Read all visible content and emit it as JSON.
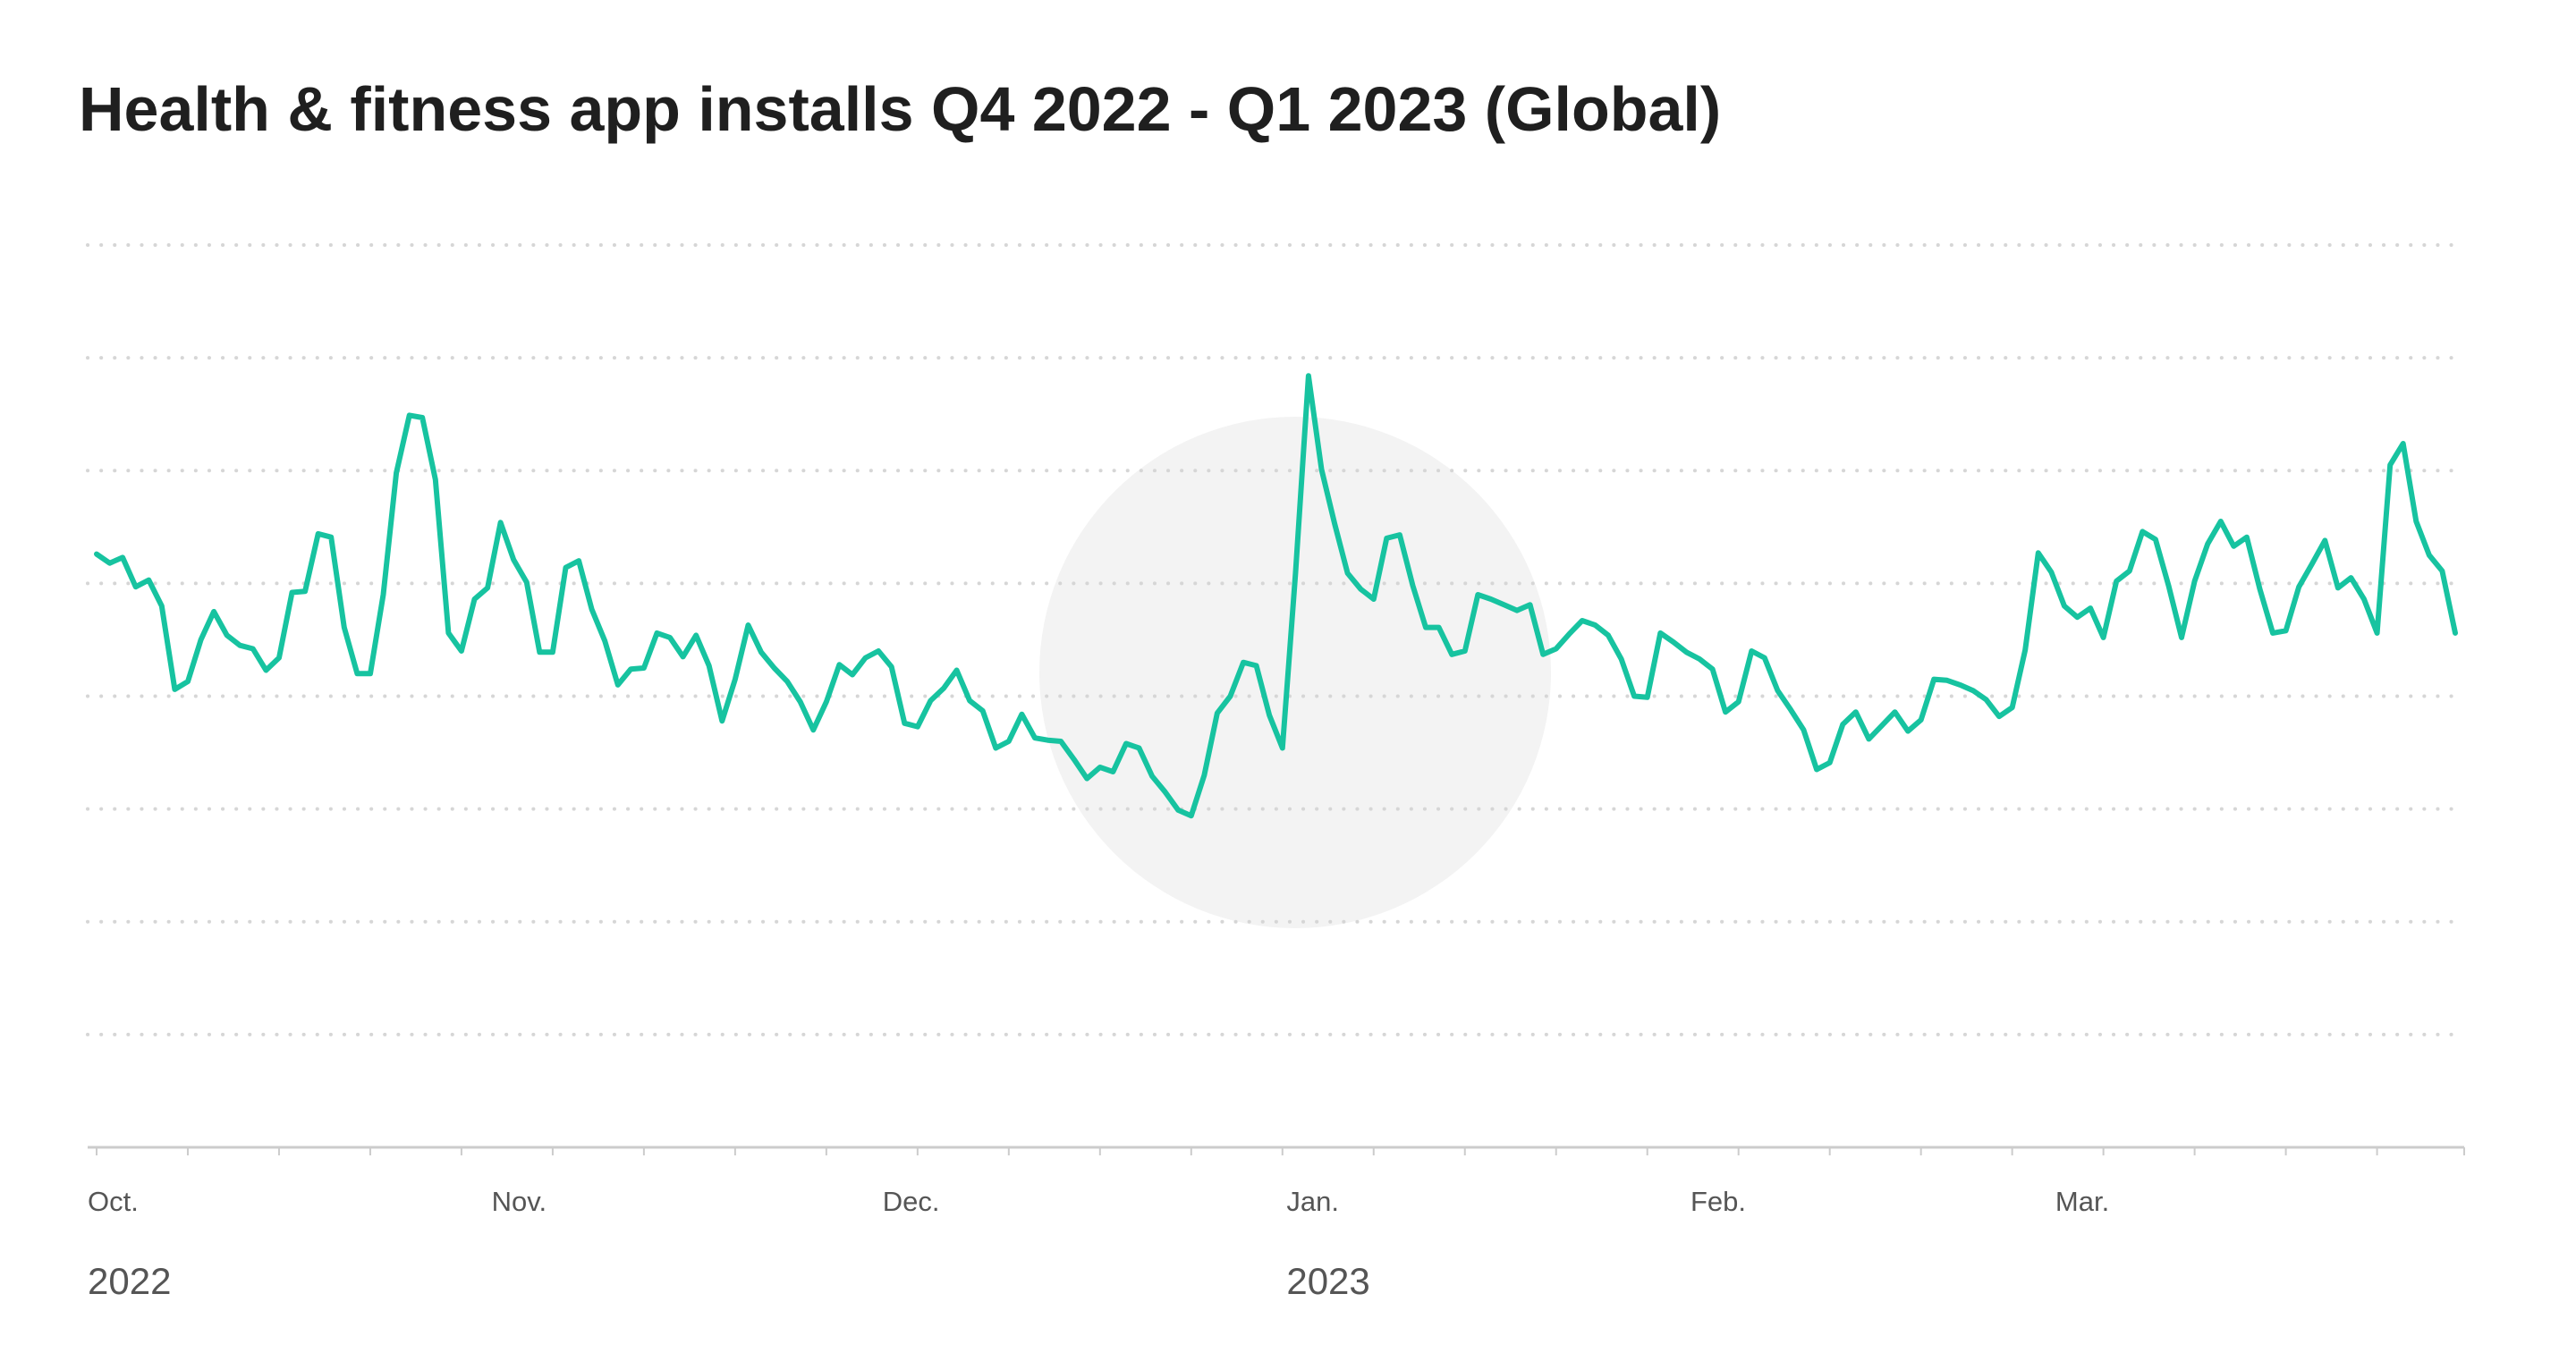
{
  "title": "Health & fitness app installs Q4 2022 - Q1 2023 (Global)",
  "colors": {
    "line": "#17c3a0",
    "grid": "#d6d6d6",
    "axis": "#cccccc",
    "watermark": "#f3f3f3",
    "text": "#555555",
    "title": "#1f1f1f"
  },
  "watermark": {
    "icon": "logo-watermark-icon"
  },
  "chart_data": {
    "type": "line",
    "title": "Health & fitness app installs Q4 2022 - Q1 2023 (Global)",
    "xlabel": "",
    "ylabel": "",
    "grid": true,
    "y_axis_labels_shown": false,
    "ylim": [
      0,
      8
    ],
    "x_range": [
      "2022-10-01",
      "2023-03-31"
    ],
    "month_labels": [
      {
        "label": "Oct.",
        "date": "2022-10-01"
      },
      {
        "label": "Nov.",
        "date": "2022-11-01"
      },
      {
        "label": "Dec.",
        "date": "2022-12-01"
      },
      {
        "label": "Jan.",
        "date": "2023-01-01"
      },
      {
        "label": "Feb.",
        "date": "2023-02-01"
      },
      {
        "label": "Mar.",
        "date": "2023-03-01"
      }
    ],
    "year_labels": [
      {
        "label": "2022",
        "date": "2022-10-01"
      },
      {
        "label": "2023",
        "date": "2023-01-01"
      }
    ],
    "series": [
      {
        "values": [
          5.26,
          5.18,
          5.23,
          4.97,
          5.03,
          4.8,
          4.06,
          4.13,
          4.5,
          4.75,
          4.54,
          4.45,
          4.42,
          4.23,
          4.34,
          4.92,
          4.93,
          5.44,
          5.41,
          4.61,
          4.2,
          4.2,
          4.9,
          5.98,
          6.49,
          6.47,
          5.92,
          4.56,
          4.4,
          4.86,
          4.96,
          5.54,
          5.21,
          5.01,
          4.39,
          4.39,
          5.14,
          5.2,
          4.77,
          4.49,
          4.1,
          4.24,
          4.25,
          4.56,
          4.52,
          4.35,
          4.54,
          4.27,
          3.78,
          4.15,
          4.63,
          4.39,
          4.25,
          4.13,
          3.95,
          3.7,
          3.95,
          4.28,
          4.19,
          4.34,
          4.4,
          4.26,
          3.76,
          3.73,
          3.96,
          4.07,
          4.23,
          3.96,
          3.87,
          3.54,
          3.6,
          3.84,
          3.63,
          3.61,
          3.6,
          3.44,
          3.27,
          3.37,
          3.33,
          3.58,
          3.54,
          3.29,
          3.15,
          2.99,
          2.94,
          3.3,
          3.85,
          4.0,
          4.3,
          4.27,
          3.83,
          3.54,
          5.09,
          6.84,
          6.01,
          5.53,
          5.09,
          4.95,
          4.86,
          5.4,
          5.43,
          4.98,
          4.61,
          4.61,
          4.37,
          4.4,
          4.9,
          4.86,
          4.81,
          4.76,
          4.81,
          4.37,
          4.42,
          4.55,
          4.67,
          4.63,
          4.54,
          4.33,
          4.0,
          3.99,
          4.56,
          4.48,
          4.39,
          4.33,
          4.24,
          3.86,
          3.95,
          4.4,
          4.34,
          4.05,
          3.88,
          3.7,
          3.35,
          3.41,
          3.75,
          3.86,
          3.62,
          3.74,
          3.86,
          3.69,
          3.79,
          4.15,
          4.14,
          4.1,
          4.05,
          3.97,
          3.82,
          3.9,
          4.41,
          5.27,
          5.1,
          4.8,
          4.7,
          4.78,
          4.52,
          5.02,
          5.11,
          5.46,
          5.39,
          4.98,
          4.52,
          5.02,
          5.35,
          5.55,
          5.33,
          5.41,
          4.95,
          4.56,
          4.58,
          4.97,
          5.17,
          5.38,
          4.96,
          5.05,
          4.86,
          4.56,
          6.05,
          6.24,
          5.55,
          5.25,
          5.11,
          4.56
        ]
      }
    ]
  }
}
